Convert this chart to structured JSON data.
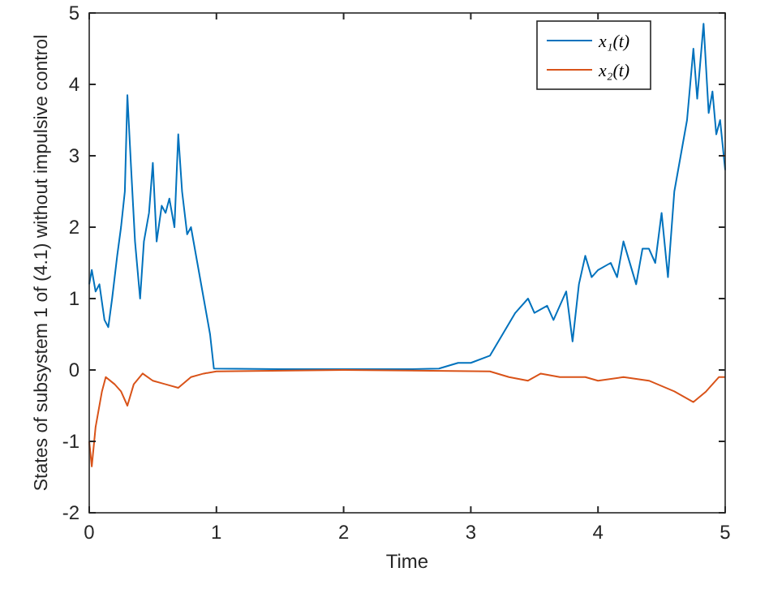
{
  "chart_data": {
    "type": "line",
    "xlabel": "Time",
    "ylabel": "States of subsystem 1 of (4.1) without impulsive control",
    "xlim": [
      0,
      5
    ],
    "ylim": [
      -2,
      5
    ],
    "xticks": [
      0,
      1,
      2,
      3,
      4,
      5
    ],
    "yticks": [
      -2,
      -1,
      0,
      1,
      2,
      3,
      4,
      5
    ],
    "grid": false,
    "legend": "top right",
    "marker": "none",
    "line_style": "solid",
    "series": [
      {
        "name": "x₁(t)",
        "color": "#0072bd",
        "x": [
          0,
          0.02,
          0.05,
          0.08,
          0.12,
          0.15,
          0.18,
          0.22,
          0.25,
          0.28,
          0.3,
          0.33,
          0.36,
          0.4,
          0.43,
          0.47,
          0.5,
          0.53,
          0.57,
          0.6,
          0.63,
          0.67,
          0.7,
          0.73,
          0.77,
          0.8,
          0.85,
          0.9,
          0.95,
          0.98,
          1.5,
          2.5,
          2.75,
          2.9,
          3.0,
          3.15,
          3.25,
          3.35,
          3.45,
          3.5,
          3.6,
          3.65,
          3.75,
          3.8,
          3.85,
          3.9,
          3.95,
          4.0,
          4.1,
          4.15,
          4.2,
          4.3,
          4.35,
          4.4,
          4.45,
          4.5,
          4.55,
          4.6,
          4.65,
          4.7,
          4.75,
          4.78,
          4.83,
          4.87,
          4.9,
          4.93,
          4.96,
          5.0
        ],
        "values": [
          1.2,
          1.4,
          1.1,
          1.2,
          0.7,
          0.6,
          1.0,
          1.6,
          2.0,
          2.5,
          3.85,
          2.8,
          1.8,
          1.0,
          1.8,
          2.2,
          2.9,
          1.8,
          2.3,
          2.2,
          2.4,
          2.0,
          3.3,
          2.5,
          1.9,
          2.0,
          1.5,
          1.0,
          0.5,
          0.02,
          0.01,
          0.01,
          0.02,
          0.1,
          0.1,
          0.2,
          0.5,
          0.8,
          1.0,
          0.8,
          0.9,
          0.7,
          1.1,
          0.4,
          1.2,
          1.6,
          1.3,
          1.4,
          1.5,
          1.3,
          1.8,
          1.2,
          1.7,
          1.7,
          1.5,
          2.2,
          1.3,
          2.5,
          3.0,
          3.5,
          4.5,
          3.8,
          4.85,
          3.6,
          3.9,
          3.3,
          3.5,
          2.8
        ]
      },
      {
        "name": "x₂(t)",
        "color": "#d95319",
        "x": [
          0,
          0.02,
          0.05,
          0.1,
          0.13,
          0.2,
          0.25,
          0.3,
          0.35,
          0.42,
          0.5,
          0.6,
          0.7,
          0.8,
          0.9,
          1.0,
          2,
          3.15,
          3.3,
          3.45,
          3.55,
          3.7,
          3.9,
          4.0,
          4.2,
          4.4,
          4.6,
          4.75,
          4.85,
          4.95,
          5.0
        ],
        "values": [
          -1.0,
          -1.35,
          -0.8,
          -0.3,
          -0.1,
          -0.2,
          -0.3,
          -0.5,
          -0.2,
          -0.05,
          -0.15,
          -0.2,
          -0.25,
          -0.1,
          -0.05,
          -0.02,
          0,
          -0.02,
          -0.1,
          -0.15,
          -0.05,
          -0.1,
          -0.1,
          -0.15,
          -0.1,
          -0.15,
          -0.3,
          -0.45,
          -0.3,
          -0.1,
          -0.1
        ]
      }
    ]
  }
}
